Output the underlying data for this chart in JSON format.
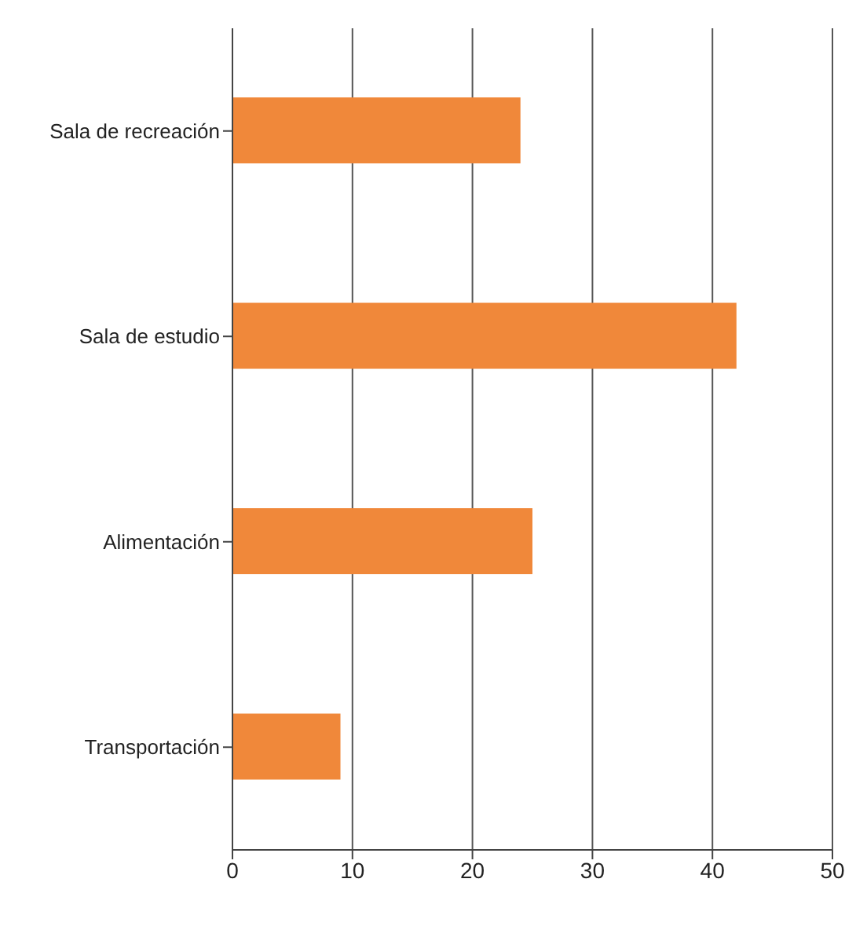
{
  "chart_data": {
    "type": "bar",
    "orientation": "horizontal",
    "categories": [
      "Sala de recreación",
      "Sala de estudio",
      "Alimentación",
      "Transportación"
    ],
    "values": [
      24,
      42,
      25,
      9
    ],
    "color": "#f0883a",
    "xlim": [
      0,
      50
    ],
    "xticks": [
      0,
      10,
      20,
      30,
      40,
      50
    ],
    "grid": "x"
  }
}
